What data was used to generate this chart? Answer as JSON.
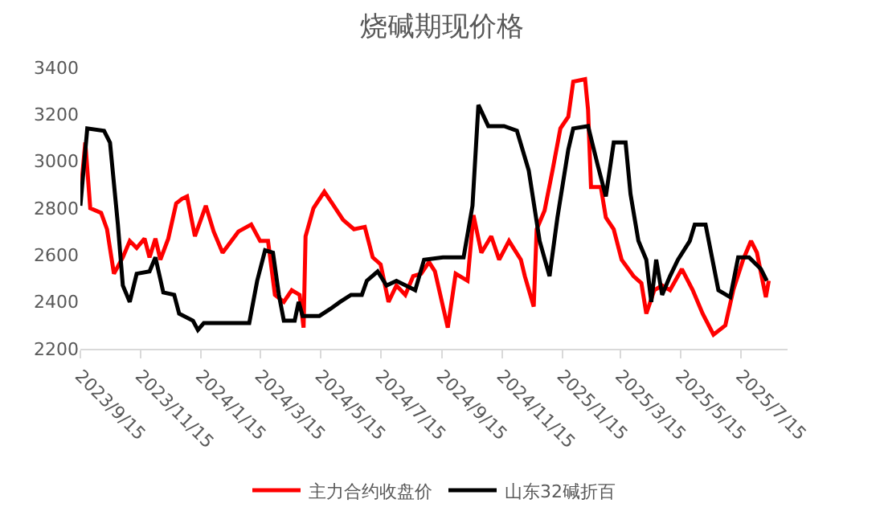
{
  "chart_data": {
    "type": "line",
    "title": "烧碱期现价格",
    "xlim": [
      "2023-09-15",
      "2025-08-31"
    ],
    "xticks": [
      {
        "value": "2023-09-15",
        "label": "2023/9/15"
      },
      {
        "value": "2023-11-15",
        "label": "2023/11/15"
      },
      {
        "value": "2024-01-15",
        "label": "2024/1/15"
      },
      {
        "value": "2024-03-15",
        "label": "2024/3/15"
      },
      {
        "value": "2024-05-15",
        "label": "2024/5/15"
      },
      {
        "value": "2024-07-15",
        "label": "2024/7/15"
      },
      {
        "value": "2024-09-15",
        "label": "2024/9/15"
      },
      {
        "value": "2024-11-15",
        "label": "2024/11/15"
      },
      {
        "value": "2025-01-15",
        "label": "2025/1/15"
      },
      {
        "value": "2025-03-15",
        "label": "2025/3/15"
      },
      {
        "value": "2025-05-15",
        "label": "2025/5/15"
      },
      {
        "value": "2025-07-15",
        "label": "2025/7/15"
      }
    ],
    "ylim": [
      2200,
      3400
    ],
    "yticks": [
      2200,
      2400,
      2600,
      2800,
      3000,
      3200,
      3400
    ],
    "grid": false,
    "legend": "bottom",
    "marker": "none",
    "line_style": "solid",
    "series": [
      {
        "name": "主力合约收盘价",
        "color": "#ff0000",
        "x": [
          "2023-09-15",
          "2023-09-20",
          "2023-09-25",
          "2023-10-06",
          "2023-10-12",
          "2023-10-19",
          "2023-10-28",
          "2023-11-04",
          "2023-11-11",
          "2023-11-19",
          "2023-11-24",
          "2023-11-30",
          "2023-12-05",
          "2023-12-13",
          "2023-12-21",
          "2023-12-27",
          "2024-01-01",
          "2024-01-09",
          "2024-01-20",
          "2024-01-28",
          "2024-02-06",
          "2024-02-22",
          "2024-03-06",
          "2024-03-15",
          "2024-03-23",
          "2024-03-30",
          "2024-04-08",
          "2024-04-16",
          "2024-04-24",
          "2024-04-28",
          "2024-04-30",
          "2024-05-08",
          "2024-05-19",
          "2024-05-27",
          "2024-06-07",
          "2024-06-18",
          "2024-06-29",
          "2024-07-07",
          "2024-07-15",
          "2024-07-23",
          "2024-07-31",
          "2024-08-09",
          "2024-08-17",
          "2024-08-25",
          "2024-09-02",
          "2024-09-08",
          "2024-09-21",
          "2024-09-29",
          "2024-10-11",
          "2024-10-17",
          "2024-10-25",
          "2024-11-04",
          "2024-11-12",
          "2024-11-22",
          "2024-12-04",
          "2024-12-08",
          "2024-12-17",
          "2024-12-20",
          "2024-12-28",
          "2025-01-05",
          "2025-01-13",
          "2025-01-21",
          "2025-01-26",
          "2025-02-07",
          "2025-02-10",
          "2025-02-13",
          "2025-02-23",
          "2025-02-28",
          "2025-03-08",
          "2025-03-16",
          "2025-03-28",
          "2025-04-05",
          "2025-04-10",
          "2025-04-18",
          "2025-04-26",
          "2025-05-04",
          "2025-05-16",
          "2025-05-27",
          "2025-06-06",
          "2025-06-17",
          "2025-06-29",
          "2025-07-07",
          "2025-07-17",
          "2025-07-25",
          "2025-07-31",
          "2025-08-09",
          "2025-08-12"
        ],
        "values": [
          2850,
          3080,
          2800,
          2780,
          2710,
          2520,
          2590,
          2660,
          2630,
          2670,
          2590,
          2670,
          2580,
          2670,
          2820,
          2840,
          2850,
          2680,
          2810,
          2700,
          2610,
          2700,
          2730,
          2660,
          2660,
          2430,
          2400,
          2450,
          2430,
          2290,
          2680,
          2800,
          2870,
          2820,
          2750,
          2710,
          2720,
          2590,
          2560,
          2400,
          2470,
          2430,
          2510,
          2520,
          2570,
          2530,
          2290,
          2520,
          2490,
          2770,
          2610,
          2680,
          2580,
          2660,
          2580,
          2510,
          2380,
          2710,
          2790,
          2960,
          3140,
          3190,
          3340,
          3350,
          3220,
          2890,
          2890,
          2760,
          2710,
          2580,
          2510,
          2480,
          2350,
          2450,
          2470,
          2450,
          2540,
          2450,
          2350,
          2260,
          2300,
          2450,
          2580,
          2660,
          2610,
          2420,
          2490
        ]
      },
      {
        "name": "山东32碱折百",
        "color": "#000000",
        "x": [
          "2023-09-15",
          "2023-09-22",
          "2023-10-09",
          "2023-10-15",
          "2023-10-23",
          "2023-10-28",
          "2023-11-04",
          "2023-11-11",
          "2023-11-24",
          "2023-11-30",
          "2023-12-08",
          "2023-12-19",
          "2023-12-24",
          "2024-01-07",
          "2024-01-12",
          "2024-01-18",
          "2024-03-04",
          "2024-03-12",
          "2024-03-20",
          "2024-03-28",
          "2024-04-03",
          "2024-04-08",
          "2024-04-19",
          "2024-04-23",
          "2024-04-27",
          "2024-05-14",
          "2024-05-25",
          "2024-06-04",
          "2024-06-15",
          "2024-06-26",
          "2024-07-01",
          "2024-07-12",
          "2024-07-21",
          "2024-07-31",
          "2024-08-19",
          "2024-08-28",
          "2024-09-16",
          "2024-10-07",
          "2024-10-16",
          "2024-10-22",
          "2024-11-01",
          "2024-11-17",
          "2024-11-30",
          "2024-12-12",
          "2024-12-23",
          "2025-01-02",
          "2025-01-10",
          "2025-01-21",
          "2025-01-26",
          "2025-02-10",
          "2025-02-20",
          "2025-02-28",
          "2025-03-08",
          "2025-03-20",
          "2025-03-25",
          "2025-04-02",
          "2025-04-10",
          "2025-04-15",
          "2025-04-20",
          "2025-04-26",
          "2025-05-04",
          "2025-05-12",
          "2025-05-24",
          "2025-05-29",
          "2025-06-09",
          "2025-06-22",
          "2025-07-04",
          "2025-07-12",
          "2025-07-23",
          "2025-08-04",
          "2025-08-10"
        ],
        "values": [
          2810,
          3140,
          3130,
          3080,
          2730,
          2470,
          2400,
          2520,
          2530,
          2590,
          2440,
          2430,
          2350,
          2320,
          2280,
          2310,
          2310,
          2490,
          2620,
          2610,
          2430,
          2320,
          2320,
          2400,
          2340,
          2340,
          2370,
          2400,
          2430,
          2430,
          2490,
          2530,
          2470,
          2490,
          2450,
          2580,
          2590,
          2590,
          2810,
          3240,
          3150,
          3150,
          3130,
          2960,
          2660,
          2510,
          2760,
          3050,
          3140,
          3150,
          2980,
          2850,
          3080,
          3080,
          2860,
          2660,
          2580,
          2400,
          2580,
          2430,
          2510,
          2580,
          2660,
          2730,
          2730,
          2450,
          2420,
          2590,
          2590,
          2540,
          2490
        ]
      }
    ]
  }
}
